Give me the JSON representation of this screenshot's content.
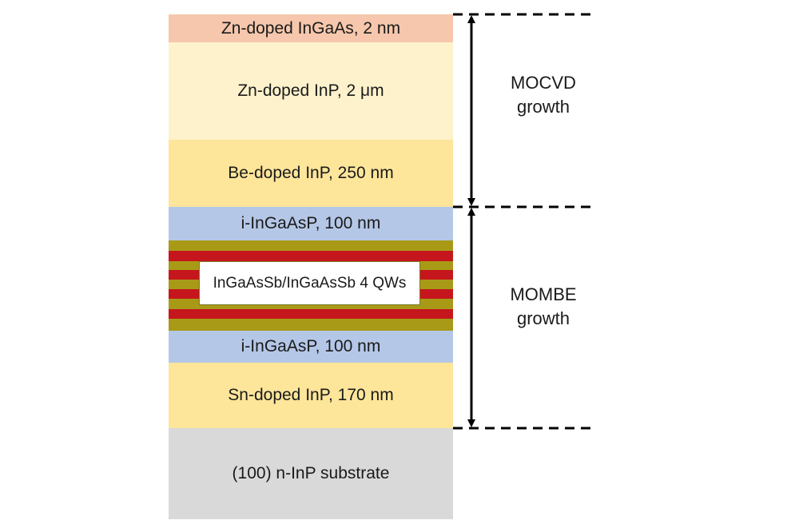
{
  "colors": {
    "ingaas_cap": "#f6c7ac",
    "zn_inp": "#fef2cc",
    "be_inp": "#fde59a",
    "ingaasp": "#b4c7e7",
    "sn_inp": "#fde59a",
    "substrate": "#d9d9d9",
    "qw_red": "#c5161d",
    "qw_olive": "#a89a17"
  },
  "layers": {
    "cap": "Zn-doped InGaAs, 2 nm",
    "zn_inp": "Zn-doped InP, 2 μm",
    "be_inp": "Be-doped InP, 250 nm",
    "ingaasp_top": "i-InGaAsP, 100 nm",
    "qws": "InGaAsSb/InGaAsSb 4 QWs",
    "ingaasp_bottom": "i-InGaAsP, 100 nm",
    "sn_inp": "Sn-doped InP, 170 nm",
    "substrate": "(100) n-InP substrate"
  },
  "growth": {
    "mocvd_line1": "MOCVD",
    "mocvd_line2": "growth",
    "mombe_line1": "MOMBE",
    "mombe_line2": "growth"
  }
}
